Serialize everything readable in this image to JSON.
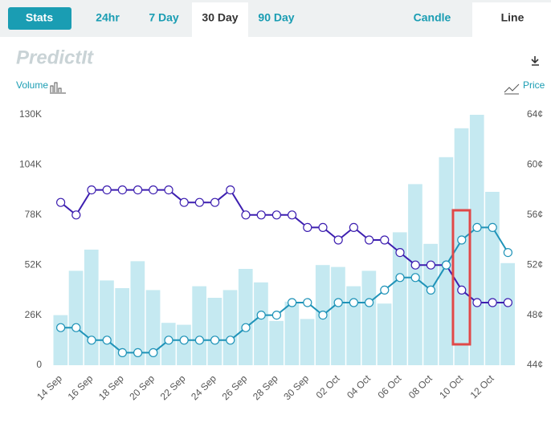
{
  "tabs": [
    "Stats",
    "24hr",
    "7 Day",
    "30 Day",
    "90 Day",
    "Candle",
    "Line"
  ],
  "logo": "PredictIt",
  "chart_data": {
    "type": "bar",
    "y_label": "Volume",
    "y2_label": "Price",
    "categories": [
      "14 Sep",
      null,
      "16 Sep",
      null,
      "18 Sep",
      null,
      "20 Sep",
      null,
      "22 Sep",
      null,
      "24 Sep",
      null,
      "26 Sep",
      null,
      "28 Sep",
      null,
      "30 Sep",
      null,
      "02 Oct",
      null,
      "04 Oct",
      null,
      "06 Oct",
      null,
      "08 Oct",
      null,
      "10 Oct",
      null,
      "12 Oct",
      null
    ],
    "ylim": [
      0,
      130000
    ],
    "yticks": [
      {
        "value": 0,
        "label": "0"
      },
      {
        "value": 26000,
        "label": "26K"
      },
      {
        "value": 52000,
        "label": "52K"
      },
      {
        "value": 78000,
        "label": "78K"
      },
      {
        "value": 104000,
        "label": "104K"
      },
      {
        "value": 130000,
        "label": "130K"
      }
    ],
    "y2lim": [
      44,
      64
    ],
    "y2ticks": [
      {
        "value": 44,
        "label": "44¢"
      },
      {
        "value": 48,
        "label": "48¢"
      },
      {
        "value": 52,
        "label": "52¢"
      },
      {
        "value": 56,
        "label": "56¢"
      },
      {
        "value": 60,
        "label": "60¢"
      },
      {
        "value": 64,
        "label": "64¢"
      }
    ],
    "series": [
      {
        "type": "bar",
        "color": "#c5e9f1",
        "values": [
          26000,
          49000,
          60000,
          44000,
          40000,
          54000,
          39000,
          22000,
          21000,
          41000,
          35000,
          39000,
          50000,
          43000,
          23000,
          33000,
          24000,
          52000,
          51000,
          41000,
          49000,
          32000,
          69000,
          94000,
          63000,
          108000,
          123000,
          130000,
          90000,
          53000
        ]
      },
      {
        "type": "line",
        "axis": "y2",
        "color": "#3d1fb0",
        "values": [
          57,
          56,
          58,
          58,
          58,
          58,
          58,
          58,
          57,
          57,
          57,
          58,
          56,
          56,
          56,
          56,
          55,
          55,
          54,
          55,
          54,
          54,
          53,
          52,
          52,
          52,
          50,
          49,
          49,
          49
        ]
      },
      {
        "type": "line",
        "axis": "y2",
        "color": "#1f93b8",
        "values": [
          47,
          47,
          46,
          46,
          45,
          45,
          45,
          46,
          46,
          46,
          46,
          46,
          47,
          48,
          48,
          49,
          49,
          48,
          49,
          49,
          49,
          50,
          51,
          51,
          50,
          52,
          54,
          55,
          55,
          53
        ]
      }
    ]
  }
}
